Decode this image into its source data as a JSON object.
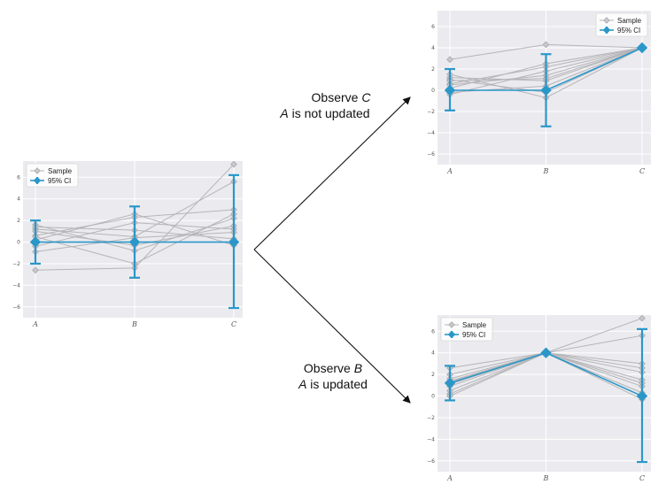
{
  "colors": {
    "sample": "#b5b5b8",
    "ci": "#2b97c9",
    "panel": "#ebebef"
  },
  "annotations": {
    "top_line1": "Observe ",
    "top_var": "C",
    "top_line2_var": "A",
    "top_line2": " is not updated",
    "bottom_line1": "Observe ",
    "bottom_var": "B",
    "bottom_line2_var": "A",
    "bottom_line2": " is updated"
  },
  "chart_data": [
    {
      "type": "line",
      "categories": [
        "A",
        "B",
        "C"
      ],
      "ylim": [
        -7,
        7.5
      ],
      "yticks": [
        -6,
        -4,
        -2,
        0,
        2,
        4,
        6
      ],
      "ytick_labels": [
        "−6",
        "−4",
        "−2",
        "0",
        "2",
        "4",
        "6"
      ],
      "legend": [
        "Sample",
        "95% CI"
      ],
      "legend_position": "top-left",
      "grid": true,
      "samples": [
        [
          -2.6,
          -2.4,
          7.2
        ],
        [
          1.2,
          0.5,
          5.6
        ],
        [
          0.6,
          2.3,
          3.0
        ],
        [
          -0.4,
          1.8,
          1.2
        ],
        [
          1.6,
          -0.8,
          2.2
        ],
        [
          0.2,
          2.6,
          -0.3
        ],
        [
          1.0,
          -0.3,
          1.5
        ],
        [
          -0.9,
          0.4,
          0.9
        ],
        [
          0.5,
          -2.0,
          2.6
        ],
        [
          1.4,
          1.1,
          0.3
        ]
      ],
      "mean": [
        0,
        0,
        0
      ],
      "ci_lower": [
        -2,
        -3.3,
        -6.1
      ],
      "ci_upper": [
        2,
        3.3,
        6.2
      ]
    },
    {
      "type": "line",
      "categories": [
        "A",
        "B",
        "C"
      ],
      "ylim": [
        -7,
        7.5
      ],
      "yticks": [
        -6,
        -4,
        -2,
        0,
        2,
        4,
        6
      ],
      "ytick_labels": [
        "−6",
        "−4",
        "−2",
        "0",
        "2",
        "4",
        "6"
      ],
      "legend": [
        "Sample",
        "95% CI"
      ],
      "legend_position": "top-right",
      "grid": true,
      "samples": [
        [
          2.9,
          4.3,
          4.0
        ],
        [
          1.2,
          0.9,
          4.0
        ],
        [
          0.6,
          2.2,
          4.0
        ],
        [
          -0.4,
          1.8,
          4.0
        ],
        [
          1.5,
          -0.7,
          4.0
        ],
        [
          0.2,
          2.5,
          4.0
        ],
        [
          1.0,
          -0.2,
          4.0
        ],
        [
          -0.2,
          0.4,
          4.0
        ],
        [
          0.5,
          1.4,
          4.0
        ],
        [
          0.9,
          1.1,
          4.0
        ]
      ],
      "mean": [
        0,
        0,
        4
      ],
      "ci_lower": [
        -1.9,
        -3.4,
        4
      ],
      "ci_upper": [
        2.0,
        3.4,
        4
      ]
    },
    {
      "type": "line",
      "categories": [
        "A",
        "B",
        "C"
      ],
      "ylim": [
        -7,
        7.5
      ],
      "yticks": [
        -6,
        -4,
        -2,
        0,
        2,
        4,
        6
      ],
      "ytick_labels": [
        "−6",
        "−4",
        "−2",
        "0",
        "2",
        "4",
        "6"
      ],
      "legend": [
        "Sample",
        "95% CI"
      ],
      "legend_position": "top-left",
      "grid": true,
      "samples": [
        [
          2.6,
          4.0,
          7.2
        ],
        [
          2.0,
          4.0,
          5.6
        ],
        [
          1.4,
          4.0,
          3.0
        ],
        [
          0.9,
          4.0,
          1.2
        ],
        [
          0.2,
          4.0,
          -0.3
        ],
        [
          1.1,
          4.0,
          2.2
        ],
        [
          1.6,
          4.0,
          1.5
        ],
        [
          0.5,
          4.0,
          0.9
        ],
        [
          1.3,
          4.0,
          2.6
        ],
        [
          0.0,
          4.0,
          0.3
        ]
      ],
      "mean": [
        1.2,
        4.0,
        0.0
      ],
      "ci_lower": [
        -0.4,
        4.0,
        -6.1
      ],
      "ci_upper": [
        2.8,
        4.0,
        6.2
      ]
    }
  ]
}
